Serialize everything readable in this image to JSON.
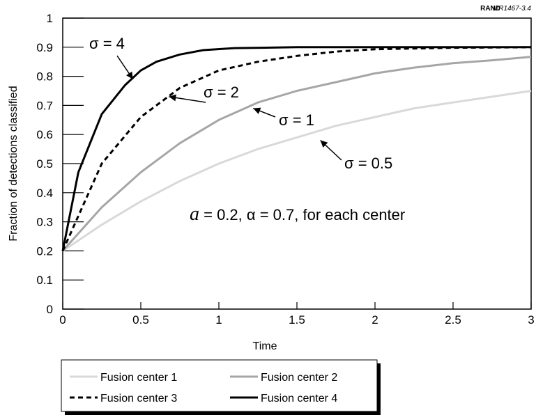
{
  "credit": {
    "org": "RAND",
    "code": "MR1467-3.4"
  },
  "chart_data": {
    "type": "line",
    "xlabel": "Time",
    "ylabel": "Fraction of detections classified",
    "xlim": [
      0,
      3
    ],
    "ylim": [
      0,
      1
    ],
    "xticks": [
      "0",
      "0.5",
      "1",
      "1.5",
      "2",
      "2.5",
      "3"
    ],
    "yticks": [
      "0",
      "0.1",
      "0.2",
      "0.3",
      "0.4",
      "0.5",
      "0.6",
      "0.7",
      "0.8",
      "0.9",
      "1"
    ],
    "grid": false,
    "legend_position": "bottom-left",
    "series": [
      {
        "name": "Fusion center 1",
        "color": "#d9d9d9",
        "dash": "solid",
        "x": [
          0,
          0.25,
          0.5,
          0.75,
          1,
          1.25,
          1.5,
          1.75,
          2,
          2.25,
          2.5,
          2.75,
          3
        ],
        "y": [
          0.2,
          0.29,
          0.37,
          0.44,
          0.5,
          0.55,
          0.59,
          0.63,
          0.66,
          0.69,
          0.71,
          0.73,
          0.75
        ]
      },
      {
        "name": "Fusion center 2",
        "color": "#a6a6a6",
        "dash": "solid",
        "x": [
          0,
          0.25,
          0.5,
          0.75,
          1,
          1.25,
          1.5,
          1.75,
          2,
          2.25,
          2.5,
          2.75,
          3
        ],
        "y": [
          0.2,
          0.35,
          0.47,
          0.57,
          0.65,
          0.71,
          0.75,
          0.78,
          0.81,
          0.83,
          0.845,
          0.855,
          0.867
        ]
      },
      {
        "name": "Fusion center 3",
        "color": "#000000",
        "dash": "dashed",
        "x": [
          0,
          0.25,
          0.5,
          0.75,
          1,
          1.25,
          1.5,
          1.75,
          2,
          2.5,
          3
        ],
        "y": [
          0.2,
          0.5,
          0.66,
          0.76,
          0.82,
          0.85,
          0.87,
          0.885,
          0.893,
          0.898,
          0.9
        ]
      },
      {
        "name": "Fusion center 4",
        "color": "#000000",
        "dash": "solid",
        "x": [
          0,
          0.1,
          0.25,
          0.4,
          0.5,
          0.6,
          0.75,
          0.9,
          1.1,
          1.5,
          2,
          3
        ],
        "y": [
          0.2,
          0.47,
          0.67,
          0.77,
          0.82,
          0.85,
          0.875,
          0.89,
          0.897,
          0.9,
          0.9,
          0.9
        ]
      }
    ],
    "annotations": [
      {
        "label": "σ = 4",
        "series": "Fusion center 4",
        "x": 0.45,
        "y": 0.79
      },
      {
        "label": "σ = 2",
        "series": "Fusion center 3",
        "x": 0.68,
        "y": 0.73
      },
      {
        "label": "σ = 1",
        "series": "Fusion center 2",
        "x": 1.22,
        "y": 0.69
      },
      {
        "label": "σ = 0.5",
        "series": "Fusion center 1",
        "x": 1.65,
        "y": 0.58
      }
    ],
    "params_prefix": "a",
    "params_text": " = 0.2, α = 0.7, for each center"
  }
}
